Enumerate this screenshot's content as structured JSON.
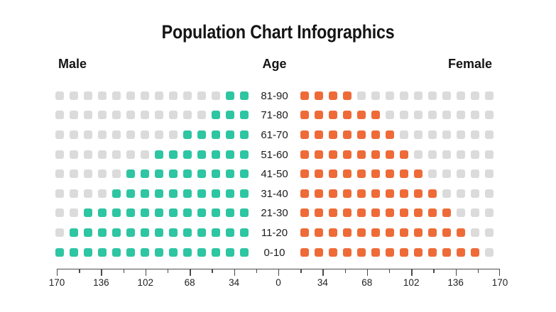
{
  "title": "Population Chart Infographics",
  "headers": {
    "male": "Male",
    "age": "Age",
    "female": "Female"
  },
  "colors": {
    "male": "#2EC5A2",
    "female": "#EE6B38",
    "empty": "#DBDBDB",
    "axis_line": "#4A4A4A"
  },
  "chart_data": {
    "type": "dot-matrix",
    "subtype": "population-pyramid",
    "title": "Population Chart Infographics",
    "slots_per_side": 14,
    "age_groups": [
      "81-90",
      "71-80",
      "61-70",
      "51-60",
      "41-50",
      "31-40",
      "21-30",
      "11-20",
      "0-10"
    ],
    "series": [
      {
        "name": "Male",
        "side": "left",
        "color": "#2EC5A2",
        "filled_squares": [
          2,
          3,
          5,
          7,
          9,
          10,
          12,
          13,
          14
        ]
      },
      {
        "name": "Female",
        "side": "right",
        "color": "#EE6B38",
        "filled_squares": [
          4,
          6,
          7,
          8,
          9,
          10,
          11,
          12,
          13
        ]
      }
    ],
    "empty_slot_color": "#DBDBDB",
    "axis_tick_labels": [
      "170",
      "136",
      "102",
      "68",
      "34",
      "0",
      "34",
      "68",
      "102",
      "136",
      "170"
    ],
    "axis_range_per_side": [
      0,
      170
    ],
    "minor_ticks_between_majors": 1,
    "grid": false,
    "legend": false
  }
}
